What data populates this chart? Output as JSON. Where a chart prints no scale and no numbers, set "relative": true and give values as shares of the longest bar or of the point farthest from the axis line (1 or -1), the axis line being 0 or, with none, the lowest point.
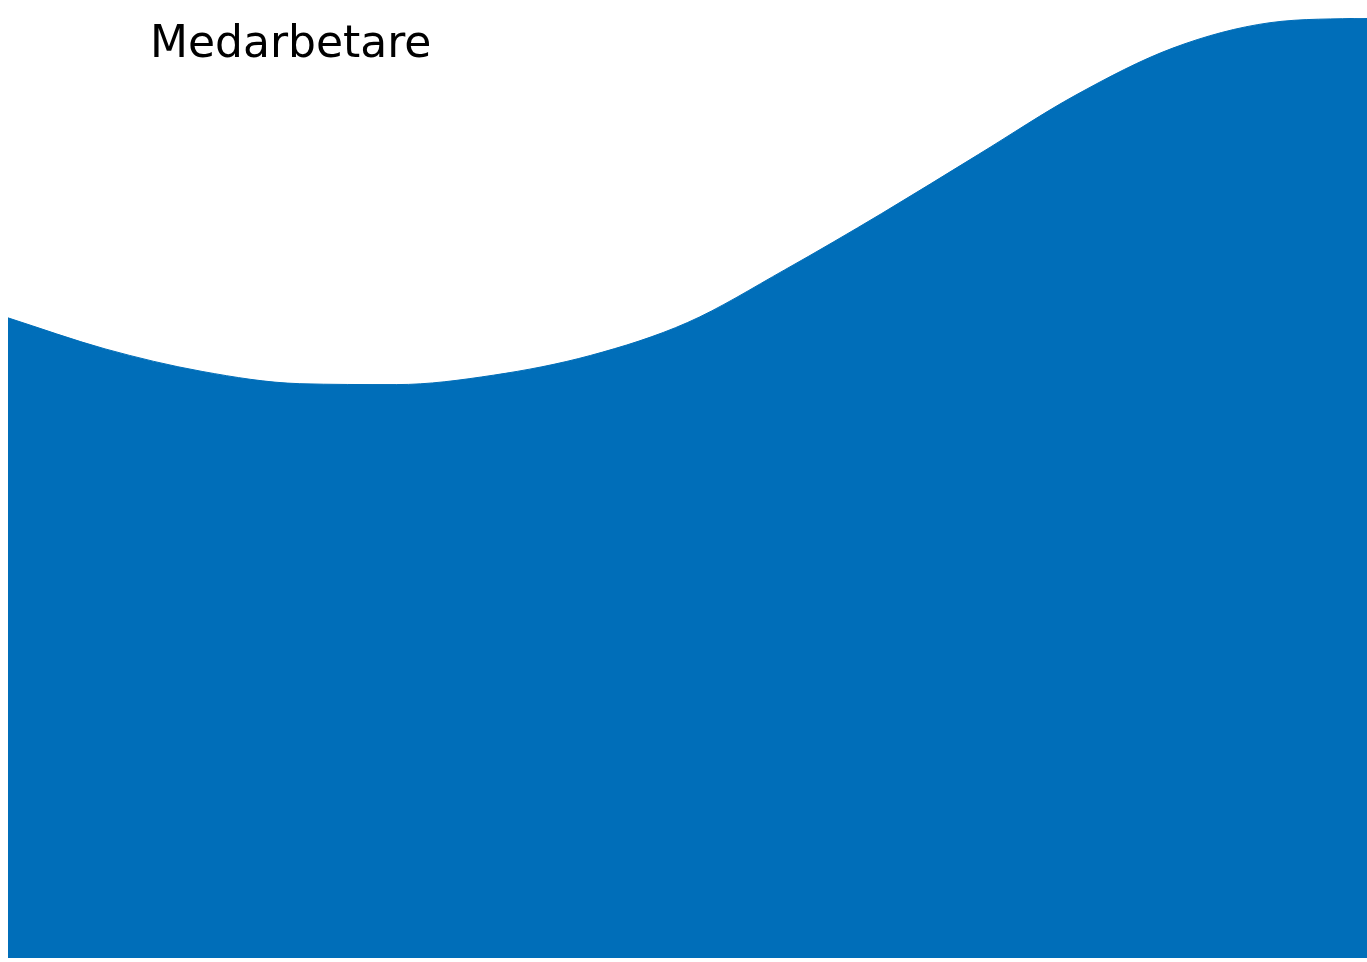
{
  "chart_data": {
    "type": "area",
    "title": "Medarbetare",
    "relative": true,
    "categories": [
      null,
      null,
      null,
      null,
      null,
      null,
      null,
      null,
      null,
      null,
      null,
      null,
      null,
      null,
      null
    ],
    "values": [
      0.681,
      0.648,
      0.624,
      0.611,
      0.61,
      0.62,
      0.641,
      0.676,
      0.732,
      0.792,
      0.855,
      0.918,
      0.968,
      0.995,
      1
    ],
    "color": "#006eb9"
  }
}
